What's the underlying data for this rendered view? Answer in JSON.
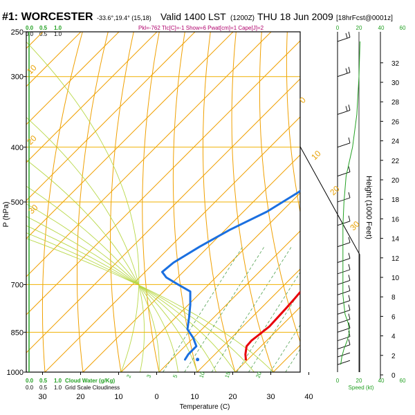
{
  "header": {
    "station": "#1: WORCESTER",
    "coords": "-33.6°,19.4° (15,18)",
    "valid": "Valid 1400 LST",
    "utc": "(1200Z)",
    "date": "THU 18 Jun 2009",
    "fcst": "[18hrFcst@0001z]",
    "indices": "Pkl=-762 Tlc[C]=-1 Show=6 Pwat[cm]=1 Cape[J]=2"
  },
  "chart_data": {
    "type": "line",
    "title": "",
    "xlabel": "Temperature (C)",
    "ylabel": "P (hPa)",
    "y2label": "Height (1000 Feet)",
    "pressure_ticks": [
      {
        "label": "250",
        "p": 250
      },
      {
        "label": "300",
        "p": 300
      },
      {
        "label": "400",
        "p": 400
      },
      {
        "label": "500",
        "p": 500
      },
      {
        "label": "700",
        "p": 700
      },
      {
        "label": "850",
        "p": 850
      },
      {
        "label": "1000",
        "p": 1000
      }
    ],
    "temp_ticks": [
      {
        "label": "30",
        "x": -30
      },
      {
        "label": "20",
        "x": -20
      },
      {
        "label": "10",
        "x": -10
      },
      {
        "label": "0",
        "x": 0
      },
      {
        "label": "10",
        "x": 10
      },
      {
        "label": "20",
        "x": 20
      },
      {
        "label": "30",
        "x": 30
      },
      {
        "label": "40",
        "x": 40
      }
    ],
    "height_ticks": [
      0,
      2,
      4,
      6,
      8,
      10,
      12,
      14,
      16,
      18,
      20,
      22,
      24,
      26,
      28,
      30,
      32
    ],
    "isotherm_labels": [
      "0",
      "10",
      "20",
      "30",
      "10",
      "20",
      "30"
    ],
    "mixing_ratio_labels": [
      "2",
      "3",
      "5",
      "10",
      "15",
      "20"
    ],
    "cloud_axis": {
      "ticks": [
        "0.0",
        "0.5",
        "1.0"
      ],
      "top_ticks": [
        "0.0",
        "0.5",
        "1.0"
      ],
      "label": "Cloud Water (g/Kg)",
      "ticks2": [
        "0.0",
        "0.5",
        "1.0"
      ],
      "label2": "Grid Scale Cloudiness"
    },
    "speed_axis": {
      "ticks": [
        "0",
        "20",
        "40",
        "60"
      ],
      "label": "Speed (kt)"
    },
    "series": [
      {
        "key": "temperature",
        "color": "#e8000b",
        "points": [
          {
            "p": 950,
            "t": 19.5
          },
          {
            "p": 930,
            "t": 18.0
          },
          {
            "p": 900,
            "t": 16.2
          },
          {
            "p": 880,
            "t": 16.0
          },
          {
            "p": 860,
            "t": 16.4
          },
          {
            "p": 830,
            "t": 17.0
          },
          {
            "p": 800,
            "t": 16.8
          },
          {
            "p": 770,
            "t": 16.6
          },
          {
            "p": 740,
            "t": 16.3
          },
          {
            "p": 710,
            "t": 15.9
          },
          {
            "p": 690,
            "t": 15.5
          },
          {
            "p": 670,
            "t": 15.6
          },
          {
            "p": 650,
            "t": 15.5
          },
          {
            "p": 620,
            "t": 13.6
          },
          {
            "p": 580,
            "t": 11.0
          },
          {
            "p": 540,
            "t": 7.5
          },
          {
            "p": 500,
            "t": 3.5
          },
          {
            "p": 460,
            "t": -0.2
          },
          {
            "p": 420,
            "t": -4.2
          },
          {
            "p": 380,
            "t": -8.7
          },
          {
            "p": 340,
            "t": -13.5
          },
          {
            "p": 300,
            "t": -18.7
          },
          {
            "p": 270,
            "t": -23.1
          },
          {
            "p": 260,
            "t": -24.8
          }
        ]
      },
      {
        "key": "dewpoint",
        "color": "#1a6fe0",
        "points": [
          {
            "p": 950,
            "t": 3.5
          },
          {
            "p": 930,
            "t": 3.0
          },
          {
            "p": 900,
            "t": 3.0
          },
          {
            "p": 870,
            "t": 0.0
          },
          {
            "p": 840,
            "t": -3.8
          },
          {
            "p": 800,
            "t": -6.5
          },
          {
            "p": 760,
            "t": -9.5
          },
          {
            "p": 720,
            "t": -13.0
          },
          {
            "p": 700,
            "t": -18.0
          },
          {
            "p": 680,
            "t": -23.0
          },
          {
            "p": 665,
            "t": -25.5
          },
          {
            "p": 640,
            "t": -25.0
          },
          {
            "p": 600,
            "t": -22.3
          },
          {
            "p": 560,
            "t": -18.8
          },
          {
            "p": 520,
            "t": -13.8
          },
          {
            "p": 480,
            "t": -10.6
          },
          {
            "p": 440,
            "t": -9.9
          },
          {
            "p": 410,
            "t": -11.0
          },
          {
            "p": 380,
            "t": -16.3
          },
          {
            "p": 350,
            "t": -21.8
          },
          {
            "p": 330,
            "t": -25.7
          },
          {
            "p": 310,
            "t": -28.8
          },
          {
            "p": 290,
            "t": -31.5
          },
          {
            "p": 270,
            "t": -33.6
          },
          {
            "p": 260,
            "t": -34.9
          }
        ]
      }
    ],
    "surface_dewpoint_marker": {
      "p": 950,
      "t": 6.8
    },
    "wind_profile": [
      {
        "p": 970,
        "speed": 3
      },
      {
        "p": 940,
        "speed": 4
      },
      {
        "p": 910,
        "speed": 6
      },
      {
        "p": 880,
        "speed": 9
      },
      {
        "p": 850,
        "speed": 11
      },
      {
        "p": 820,
        "speed": 10
      },
      {
        "p": 790,
        "speed": 7
      },
      {
        "p": 760,
        "speed": 6
      },
      {
        "p": 730,
        "speed": 5
      },
      {
        "p": 700,
        "speed": 5
      },
      {
        "p": 670,
        "speed": 5
      },
      {
        "p": 640,
        "speed": 5
      },
      {
        "p": 600,
        "speed": 5
      },
      {
        "p": 550,
        "speed": 5
      },
      {
        "p": 500,
        "speed": 6
      },
      {
        "p": 450,
        "speed": 8
      },
      {
        "p": 400,
        "speed": 14
      },
      {
        "p": 350,
        "speed": 18
      },
      {
        "p": 300,
        "speed": 20
      },
      {
        "p": 260,
        "speed": 21
      }
    ],
    "grid": true,
    "legend": "none"
  }
}
